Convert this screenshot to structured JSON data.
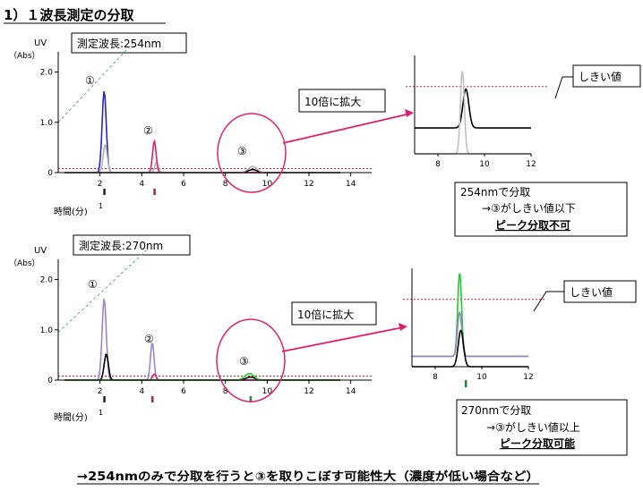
{
  "page": {
    "title": "1）１波長測定の分取",
    "conclusion": "→254nmのみで分取を行うと③を取りこぼす可能性大（濃度が低い場合など）"
  },
  "charts": [
    {
      "id": "top",
      "wavelength_label": "測定波長:254nm",
      "ylabel_uv": "UV",
      "ylabel_abs": "（Abs）",
      "xlabel": "時間(分)",
      "x_origin_label": "1",
      "peak_labels": [
        "①",
        "②",
        "③"
      ],
      "zoom_label": "10倍に拡大",
      "threshold_label": "しきい値",
      "result_lines": [
        "254nmで分取",
        "→③がしきい値以下",
        "ピーク分取不可"
      ],
      "colors": {
        "main": "#2626c8",
        "second": "#e0206e",
        "overlay": "#b0b0b0",
        "zoom_main": "#000000",
        "zoom_overlay": "#c0c0c0"
      }
    },
    {
      "id": "bottom",
      "wavelength_label": "測定波長:270nm",
      "ylabel_uv": "UV",
      "ylabel_abs": "（Abs）",
      "xlabel": "時間(分)",
      "x_origin_label": "1",
      "peak_labels": [
        "①",
        "②",
        "③"
      ],
      "zoom_label": "10倍に拡大",
      "threshold_label": "しきい値",
      "result_lines": [
        "270nmで分取",
        "→③がしきい値以上",
        "ピーク分取可能"
      ],
      "colors": {
        "main": "#000000",
        "second": "#9a86c8",
        "overlay": "#9a86c8",
        "zoom_main": "#000000",
        "zoom_overlay": "#22c832"
      }
    }
  ],
  "chart_data": [
    {
      "type": "line",
      "title": "測定波長:254nm",
      "xlabel": "時間(分)",
      "ylabel": "UV (Abs)",
      "xlim": [
        0,
        15
      ],
      "ylim": [
        0,
        2.4
      ],
      "x_ticks": [
        2,
        4,
        6,
        8,
        10,
        12,
        14
      ],
      "y_ticks": [
        0,
        1.0,
        2.0
      ],
      "y_tick_labels": [
        "0",
        "1.0",
        "2.0"
      ],
      "threshold": 0.08,
      "gradient_line": {
        "x": [
          0,
          7.5
        ],
        "y": [
          1.0,
          4.3
        ]
      },
      "series": [
        {
          "color": "#2626c8",
          "peaks": [
            {
              "x": 2.2,
              "height": 1.62,
              "width": 0.14
            }
          ]
        },
        {
          "color": "#b0b0b0",
          "peaks": [
            {
              "x": 2.25,
              "height": 0.55,
              "width": 0.14
            },
            {
              "x": 4.7,
              "height": 0.2,
              "width": 0.12
            }
          ]
        },
        {
          "color": "#e0206e",
          "peaks": [
            {
              "x": 4.6,
              "height": 0.63,
              "width": 0.12
            }
          ]
        },
        {
          "color": "#000000",
          "peaks": [
            {
              "x": 9.3,
              "height": 0.06,
              "width": 0.3
            }
          ]
        },
        {
          "color": "#b0b0b0",
          "peaks": [
            {
              "x": 9.3,
              "height": 0.12,
              "width": 0.3
            }
          ]
        }
      ],
      "fraction_marks": [
        2.2,
        4.6
      ]
    },
    {
      "type": "line",
      "title": "254nm 10倍に拡大",
      "xlim": [
        7,
        12
      ],
      "x_ticks": [
        8,
        10,
        12
      ],
      "threshold": 1.3,
      "series": [
        {
          "color": "#000000",
          "baseline": 0.5,
          "peaks": [
            {
              "x": 9.2,
              "height": 0.75,
              "width": 0.18
            }
          ]
        },
        {
          "color": "#c0c0c0",
          "baseline": 0.0,
          "peaks": [
            {
              "x": 9.05,
              "height": 1.6,
              "width": 0.12
            }
          ]
        }
      ]
    },
    {
      "type": "line",
      "title": "測定波長:270nm",
      "xlabel": "時間(分)",
      "ylabel": "UV (Abs)",
      "xlim": [
        0,
        15
      ],
      "ylim": [
        0,
        2.4
      ],
      "x_ticks": [
        2,
        4,
        6,
        8,
        10,
        12,
        14
      ],
      "y_ticks": [
        0,
        1.0,
        2.0
      ],
      "y_tick_labels": [
        "0",
        "1.0",
        "2.0"
      ],
      "threshold": 0.08,
      "gradient_line": {
        "x": [
          0,
          5.3
        ],
        "y": [
          0.95,
          3.0
        ]
      },
      "series": [
        {
          "color": "#9a86c8",
          "peaks": [
            {
              "x": 2.2,
              "height": 1.62,
              "width": 0.14
            },
            {
              "x": 4.5,
              "height": 0.75,
              "width": 0.12
            }
          ]
        },
        {
          "color": "#000000",
          "peaks": [
            {
              "x": 2.3,
              "height": 0.52,
              "width": 0.14
            },
            {
              "x": 9.2,
              "height": 0.06,
              "width": 0.3
            }
          ]
        },
        {
          "color": "#e0206e",
          "peaks": [
            {
              "x": 4.6,
              "height": 0.12,
              "width": 0.12
            }
          ]
        },
        {
          "color": "#22c832",
          "peaks": [
            {
              "x": 9.15,
              "height": 0.13,
              "width": 0.3
            }
          ]
        }
      ],
      "fraction_marks": [
        2.2,
        4.5,
        9.2
      ]
    },
    {
      "type": "line",
      "title": "270nm 10倍に拡大",
      "xlim": [
        7,
        12
      ],
      "x_ticks": [
        8,
        10,
        12
      ],
      "threshold": 1.3,
      "series": [
        {
          "color": "#22c832",
          "baseline": 0.2,
          "peaks": [
            {
              "x": 9.05,
              "height": 1.6,
              "width": 0.12
            }
          ]
        },
        {
          "color": "#9a86c8",
          "baseline": 0.2,
          "peaks": [
            {
              "x": 9.05,
              "height": 0.85,
              "width": 0.13
            }
          ]
        },
        {
          "color": "#000000",
          "baseline": 0.0,
          "peaks": [
            {
              "x": 9.1,
              "height": 0.7,
              "width": 0.16
            }
          ]
        }
      ]
    }
  ]
}
